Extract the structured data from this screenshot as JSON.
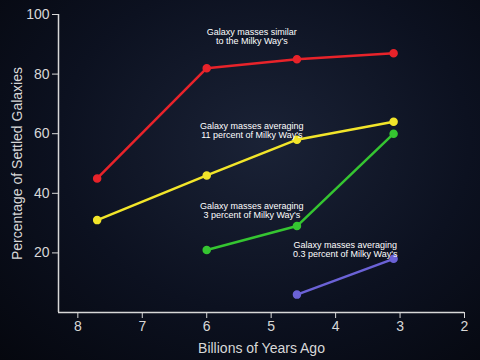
{
  "chart_data": {
    "type": "line",
    "x": [
      7.7,
      6.0,
      4.6,
      3.1
    ],
    "xlim": [
      8.3,
      2
    ],
    "xticks": [
      8,
      7,
      6,
      5,
      4,
      3,
      2
    ],
    "ylim": [
      0,
      100
    ],
    "yticks": [
      20,
      40,
      60,
      80,
      100
    ],
    "x_label": "Billions of Years Ago",
    "y_label": "Percentage of Settled Galaxies",
    "marker": "circle",
    "grid": false,
    "series": [
      {
        "name": "Galaxy masses similar\nto the Milky Way's",
        "color": "#e8232a",
        "values": [
          45,
          82,
          85,
          87
        ]
      },
      {
        "name": "Galaxy masses averaging\n11 percent of Milky Way's",
        "color": "#f2e52a",
        "values": [
          31,
          46,
          58,
          64
        ]
      },
      {
        "name": "Galaxy masses averaging\n3 percent of Milky Way's",
        "color": "#35c531",
        "values": [
          null,
          21,
          29,
          60
        ]
      },
      {
        "name": "Galaxy masses averaging\n0.3 percent of Milky Way's",
        "color": "#6b62d6",
        "values": [
          null,
          null,
          6,
          18
        ]
      }
    ]
  }
}
